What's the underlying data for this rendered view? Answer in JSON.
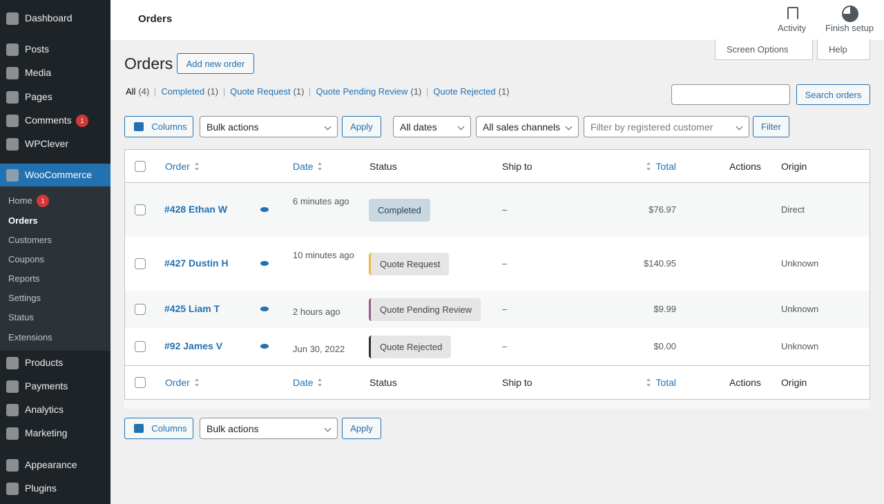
{
  "topbar": {
    "title": "Orders",
    "activity": "Activity",
    "finish_setup": "Finish setup"
  },
  "sidebar": {
    "menu_top": [
      {
        "label": "Dashboard"
      },
      {
        "label": "Posts"
      },
      {
        "label": "Media"
      },
      {
        "label": "Pages"
      },
      {
        "label": "Comments",
        "badge": 1
      },
      {
        "label": "WPClever"
      }
    ],
    "active": {
      "label": "WooCommerce"
    },
    "submenu": [
      {
        "label": "Home",
        "badge": 1
      },
      {
        "label": "Orders"
      },
      {
        "label": "Customers"
      },
      {
        "label": "Coupons"
      },
      {
        "label": "Reports"
      },
      {
        "label": "Settings"
      },
      {
        "label": "Status"
      },
      {
        "label": "Extensions"
      }
    ],
    "menu_bottom": [
      {
        "label": "Products"
      },
      {
        "label": "Payments"
      },
      {
        "label": "Analytics"
      },
      {
        "label": "Marketing"
      },
      {
        "label": "Appearance"
      },
      {
        "label": "Plugins"
      }
    ]
  },
  "header": {
    "title": "Orders",
    "add_new": "Add new order",
    "screen_options": "Screen Options",
    "help": "Help"
  },
  "views": [
    {
      "label": "All",
      "count": "(4)"
    },
    {
      "label": "Completed",
      "count": "(1)"
    },
    {
      "label": "Quote Request",
      "count": "(1)"
    },
    {
      "label": "Quote Pending Review",
      "count": "(1)"
    },
    {
      "label": "Quote Rejected",
      "count": "(1)"
    }
  ],
  "search_button": "Search orders",
  "toolbar": {
    "columns": "Columns",
    "bulk_actions": "Bulk actions",
    "apply": "Apply",
    "dates": "All dates",
    "channels": "All sales channels",
    "customer_placeholder": "Filter by registered customer",
    "filter": "Filter"
  },
  "table": {
    "headers": [
      "Order",
      "Date",
      "Status",
      "Ship to",
      "Total",
      "Actions",
      "Origin"
    ],
    "rows": [
      {
        "order": "#428 Ethan W",
        "date": "6 minutes ago",
        "status": "Completed",
        "ship_to": "–",
        "total": "$76.97",
        "origin": "Direct"
      },
      {
        "order": "#427 Dustin H",
        "date": "10 minutes ago",
        "status": "Quote Request",
        "ship_to": "–",
        "total": "$140.95",
        "origin": "Unknown"
      },
      {
        "order": "#425 Liam T",
        "date": "2 hours ago",
        "status": "Quote Pending Review",
        "ship_to": "–",
        "total": "$9.99",
        "origin": "Unknown"
      },
      {
        "order": "#92 James V",
        "date": "Jun 30, 2022",
        "status": "Quote Rejected",
        "ship_to": "–",
        "total": "$0.00",
        "origin": "Unknown"
      }
    ]
  }
}
